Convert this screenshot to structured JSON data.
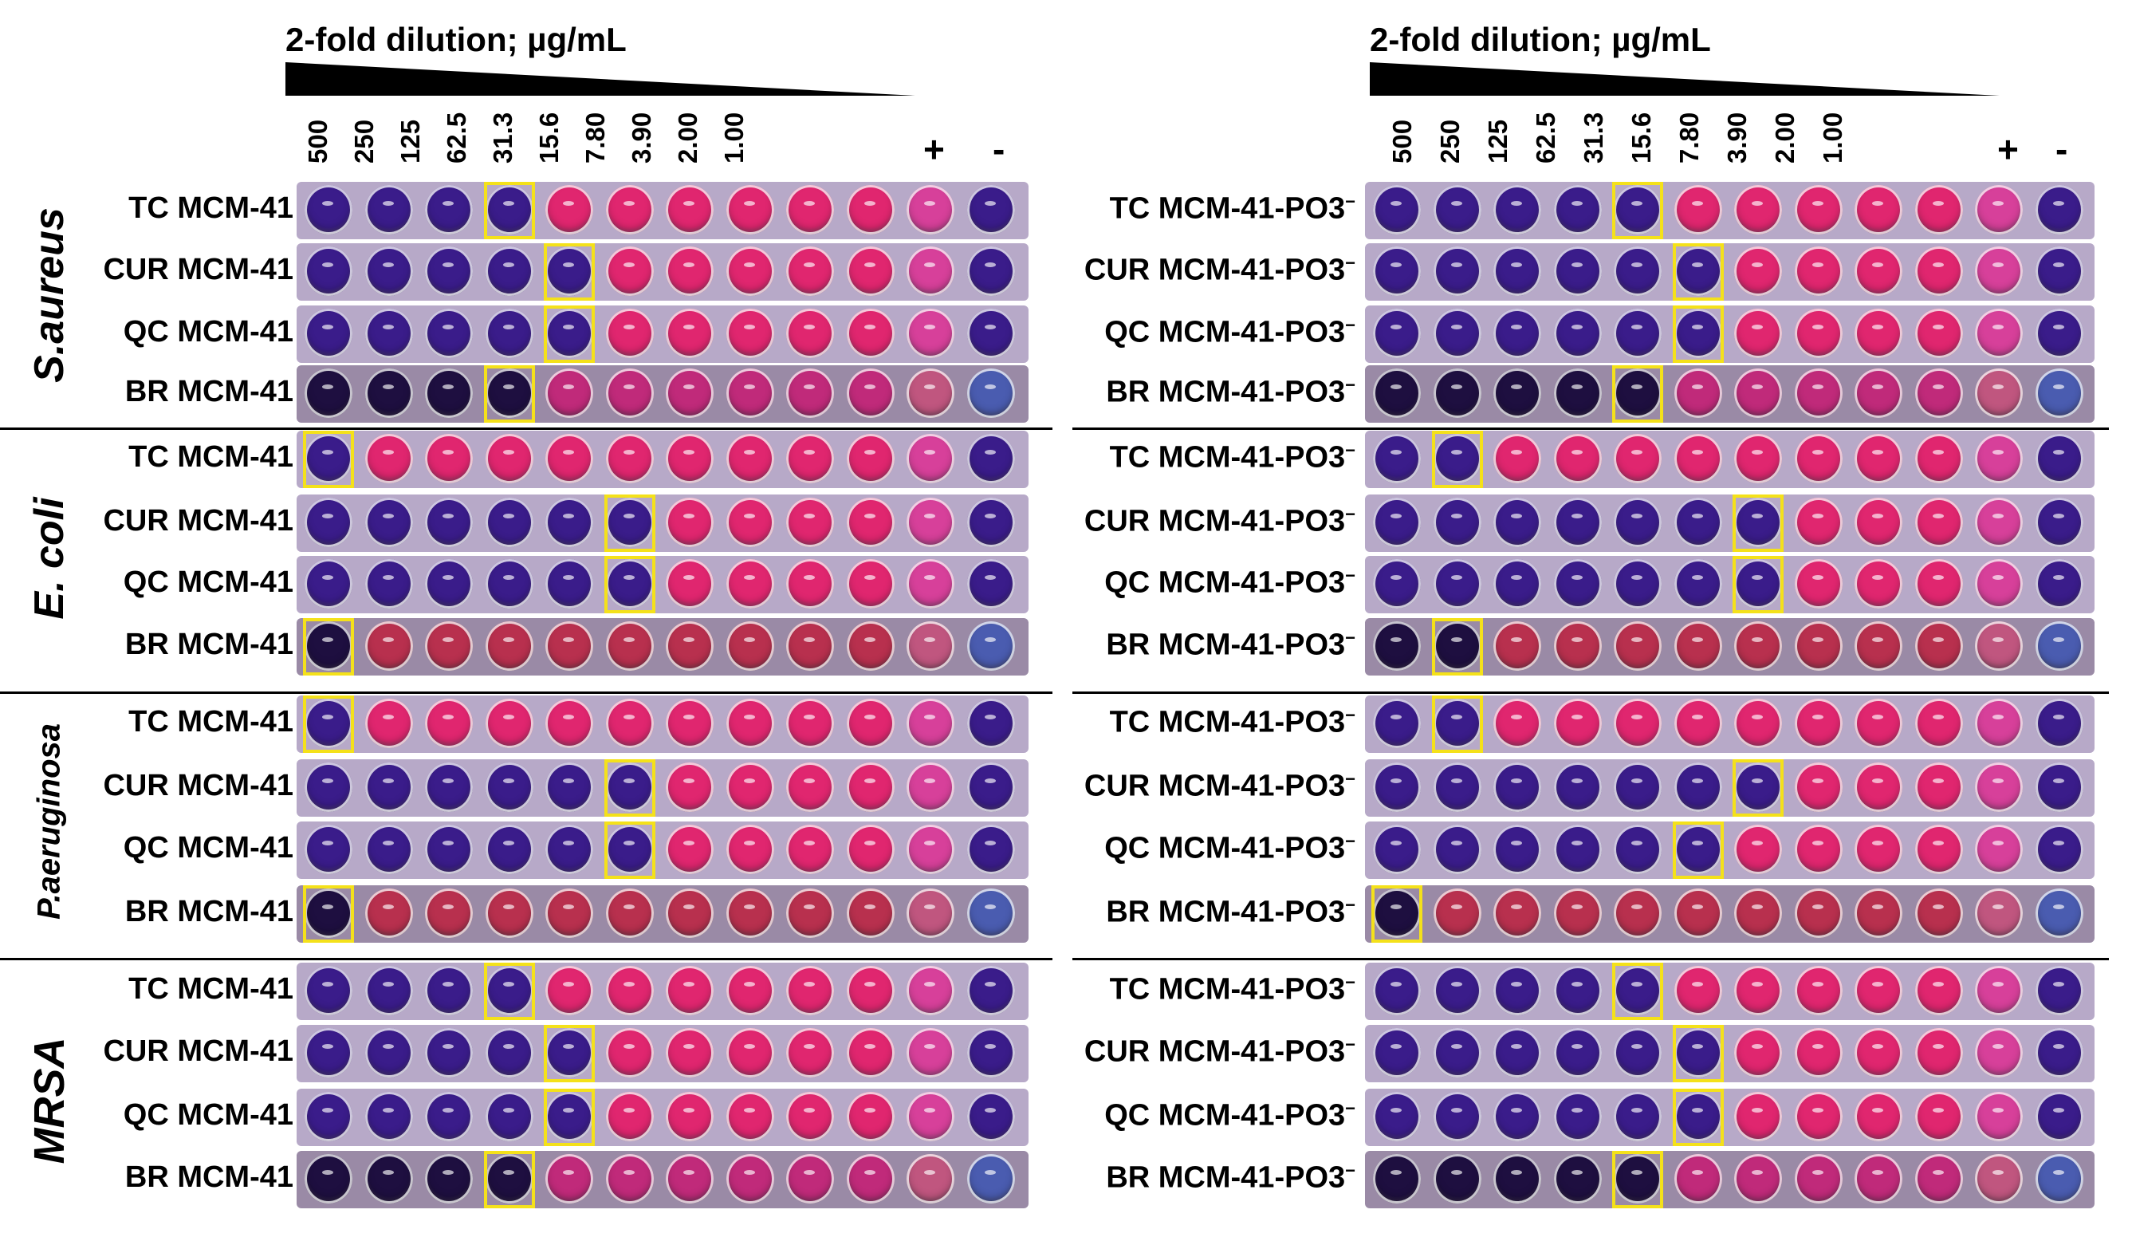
{
  "header": {
    "title": "2-fold dilution; µg/mL",
    "concentrations": [
      "500",
      "250",
      "125",
      "62.5",
      "31.3",
      "15.6",
      "7.80",
      "3.90",
      "2.00",
      "1.00"
    ],
    "positive": "+",
    "negative": "-"
  },
  "colors": {
    "blue": "#3a1c8a",
    "dark": "#1e0f40",
    "pink": "#e0266f",
    "magenta": "#c02a7a",
    "red": "#b8304e",
    "plate": "#b7a9c8",
    "highlight": "#f4e11a"
  },
  "panels": [
    {
      "name": "left",
      "groups": [
        {
          "organism": "S.aureus",
          "rows": [
            {
              "label": "TC MCM-41",
              "mic_index": 3,
              "neg_color": "blue"
            },
            {
              "label": "CUR MCM-41",
              "mic_index": 4,
              "neg_color": "blue"
            },
            {
              "label": "QC MCM-41",
              "mic_index": 4,
              "neg_color": "blue"
            },
            {
              "label": "BR MCM-41",
              "mic_index": 3,
              "neg_color": "lightblue"
            }
          ]
        },
        {
          "organism": "E. coli",
          "rows": [
            {
              "label": "TC MCM-41",
              "mic_index": 0,
              "neg_color": "blue"
            },
            {
              "label": "CUR MCM-41",
              "mic_index": 5,
              "neg_color": "blue"
            },
            {
              "label": "QC MCM-41",
              "mic_index": 5,
              "neg_color": "blue"
            },
            {
              "label": "BR MCM-41",
              "mic_index": 0,
              "neg_color": "lightblue"
            }
          ]
        },
        {
          "organism": "P.aeruginosa",
          "rows": [
            {
              "label": "TC MCM-41",
              "mic_index": 0,
              "neg_color": "blue"
            },
            {
              "label": "CUR MCM-41",
              "mic_index": 5,
              "neg_color": "blue"
            },
            {
              "label": "QC MCM-41",
              "mic_index": 5,
              "neg_color": "blue"
            },
            {
              "label": "BR MCM-41",
              "mic_index": 0,
              "neg_color": "lightblue"
            }
          ]
        },
        {
          "organism": "MRSA",
          "rows": [
            {
              "label": "TC MCM-41",
              "mic_index": 3,
              "neg_color": "blue"
            },
            {
              "label": "CUR MCM-41",
              "mic_index": 4,
              "neg_color": "blue"
            },
            {
              "label": "QC MCM-41",
              "mic_index": 4,
              "neg_color": "blue"
            },
            {
              "label": "BR MCM-41",
              "mic_index": 3,
              "neg_color": "lightblue"
            }
          ]
        }
      ]
    },
    {
      "name": "right",
      "groups": [
        {
          "organism": "S.aureus",
          "rows": [
            {
              "label": "TC MCM-41-PO3",
              "suffix": "−",
              "mic_index": 4,
              "neg_color": "blue"
            },
            {
              "label": "CUR MCM-41-PO3",
              "suffix": "−",
              "mic_index": 5,
              "neg_color": "blue"
            },
            {
              "label": "QC MCM-41-PO3",
              "suffix": "−",
              "mic_index": 5,
              "neg_color": "blue"
            },
            {
              "label": "BR MCM-41-PO3",
              "suffix": "−",
              "mic_index": 4,
              "neg_color": "lightblue"
            }
          ]
        },
        {
          "organism": "E. coli",
          "rows": [
            {
              "label": "TC MCM-41-PO3",
              "suffix": "−",
              "mic_index": 1,
              "neg_color": "blue"
            },
            {
              "label": "CUR MCM-41-PO3",
              "suffix": "−",
              "mic_index": 6,
              "neg_color": "blue"
            },
            {
              "label": "QC MCM-41-PO3",
              "suffix": "−",
              "mic_index": 6,
              "neg_color": "blue"
            },
            {
              "label": "BR MCM-41-PO3",
              "suffix": "−",
              "mic_index": 1,
              "neg_color": "lightblue"
            }
          ]
        },
        {
          "organism": "P.aeruginosa",
          "rows": [
            {
              "label": "TC MCM-41-PO3",
              "suffix": "−",
              "mic_index": 1,
              "neg_color": "blue"
            },
            {
              "label": "CUR MCM-41-PO3",
              "suffix": "−",
              "mic_index": 6,
              "neg_color": "blue"
            },
            {
              "label": "QC MCM-41-PO3",
              "suffix": "−",
              "mic_index": 5,
              "neg_color": "blue"
            },
            {
              "label": "BR MCM-41-PO3",
              "suffix": "−",
              "mic_index": 0,
              "neg_color": "lightblue"
            }
          ]
        },
        {
          "organism": "MRSA",
          "rows": [
            {
              "label": "TC MCM-41-PO3",
              "suffix": "−",
              "mic_index": 4,
              "neg_color": "blue"
            },
            {
              "label": "CUR MCM-41-PO3",
              "suffix": "−",
              "mic_index": 5,
              "neg_color": "blue"
            },
            {
              "label": "QC MCM-41-PO3",
              "suffix": "−",
              "mic_index": 5,
              "neg_color": "blue"
            },
            {
              "label": "BR MCM-41-PO3",
              "suffix": "−",
              "mic_index": 4,
              "neg_color": "lightblue"
            }
          ]
        }
      ]
    }
  ]
}
